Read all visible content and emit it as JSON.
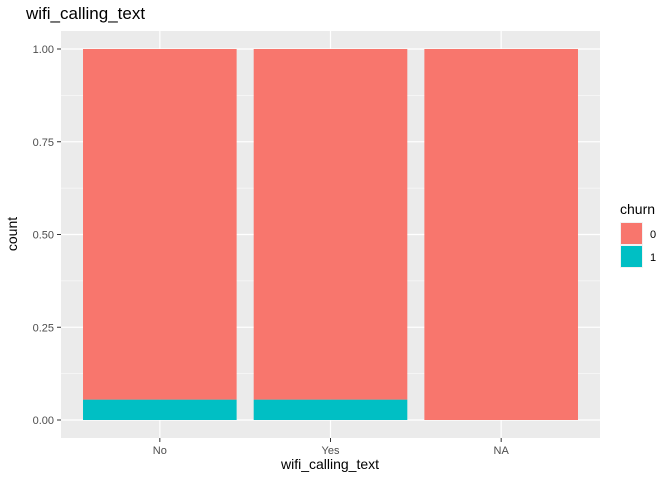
{
  "chart_data": {
    "type": "bar",
    "stacked": true,
    "title": "wifi_calling_text",
    "xlabel": "wifi_calling_text",
    "ylabel": "count",
    "categories": [
      "No",
      "Yes",
      "NA"
    ],
    "series": [
      {
        "name": "0",
        "color": "#F8766D",
        "values": [
          0.945,
          0.945,
          1.0
        ]
      },
      {
        "name": "1",
        "color": "#00BFC4",
        "values": [
          0.055,
          0.055,
          0.0
        ]
      }
    ],
    "stack_order_bottom_to_top": [
      "1",
      "0"
    ],
    "ylim": [
      0,
      1
    ],
    "yticks": [
      0,
      0.25,
      0.5,
      0.75,
      1
    ],
    "ytick_labels": [
      "0.00",
      "0.25",
      "0.50",
      "0.75",
      "1.00"
    ],
    "grid": true,
    "legend": {
      "title": "churn",
      "position": "right",
      "entries": [
        "0",
        "1"
      ]
    },
    "panel_background": "#EBEBEB",
    "gridline_color": "#FFFFFF"
  }
}
